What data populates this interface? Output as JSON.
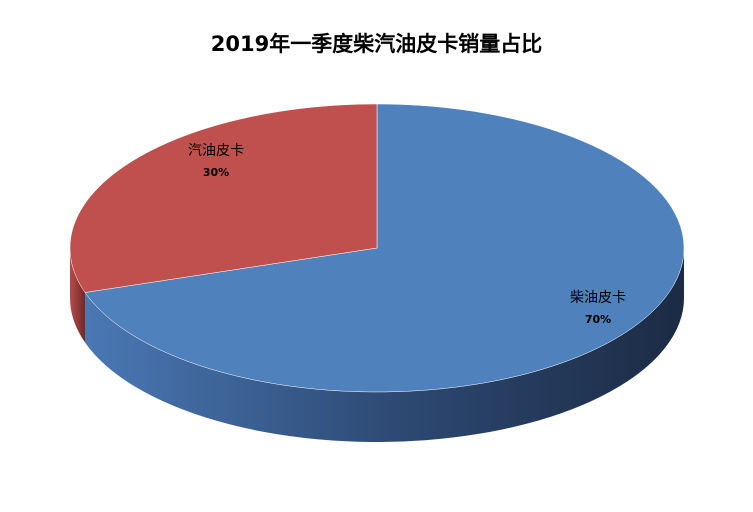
{
  "chart_data": {
    "type": "pie",
    "title": "2019年一季度柴汽油皮卡销量占比",
    "style": "3d",
    "slices": [
      {
        "label": "柴油皮卡",
        "value": 70,
        "value_label": "70%",
        "color": "#4F81BD",
        "side_dark": "#1F2F4A",
        "side_light": "#4A78B4"
      },
      {
        "label": "汽油皮卡",
        "value": 30,
        "value_label": "30%",
        "color": "#C0504D",
        "side_dark": "#6E2B29",
        "side_light": "#B84B48"
      }
    ]
  }
}
